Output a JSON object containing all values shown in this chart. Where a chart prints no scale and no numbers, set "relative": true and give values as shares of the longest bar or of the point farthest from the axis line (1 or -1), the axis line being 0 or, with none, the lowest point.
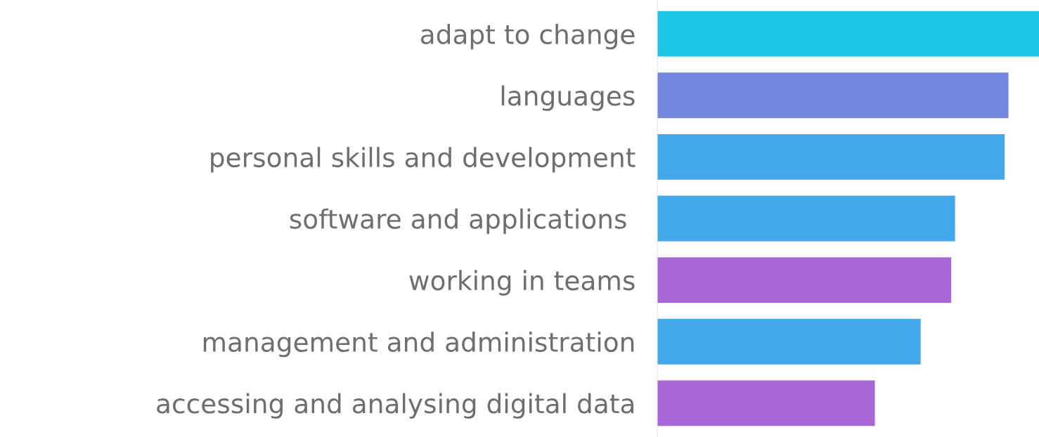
{
  "chart_data": {
    "type": "bar",
    "orientation": "horizontal",
    "relative": true,
    "categories": [
      "adapt to change",
      "languages",
      "personal skills and development",
      "software and applications ",
      "working in teams",
      "management and administration",
      "accessing and analysing digital data"
    ],
    "values": [
      1,
      0.92,
      0.91,
      0.78,
      0.77,
      0.69,
      0.57
    ],
    "colors": [
      "#1bc6e8",
      "#7588e0",
      "#42a8ea",
      "#42a8ea",
      "#a866d6",
      "#42a8ea",
      "#a866d6"
    ]
  }
}
